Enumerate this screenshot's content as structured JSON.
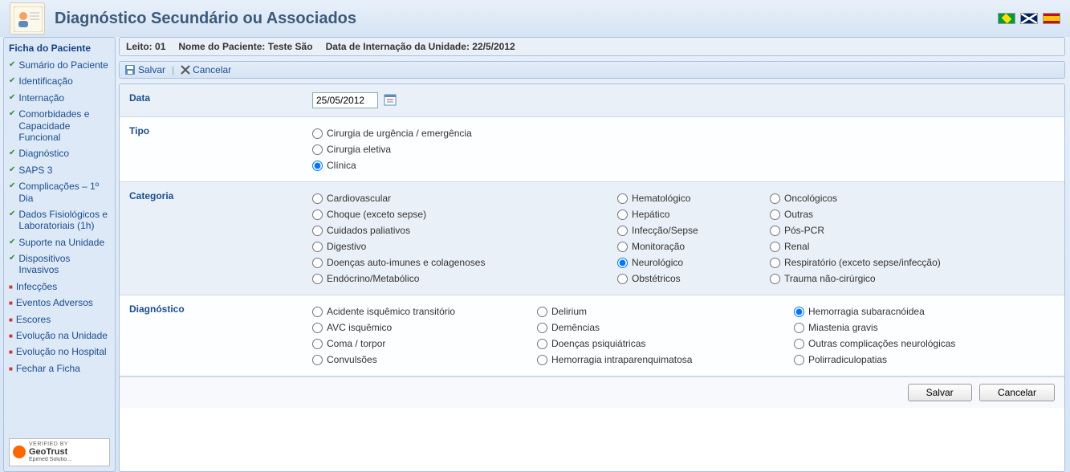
{
  "page_title": "Diagnóstico Secundário ou Associados",
  "sidebar": {
    "title": "Ficha do Paciente",
    "items": [
      {
        "label": "Sumário do Paciente",
        "type": "green"
      },
      {
        "label": "Identificação",
        "type": "green"
      },
      {
        "label": "Internação",
        "type": "green"
      },
      {
        "label": "Comorbidades e Capacidade Funcional",
        "type": "green"
      },
      {
        "label": "Diagnóstico",
        "type": "green"
      },
      {
        "label": "SAPS 3",
        "type": "green"
      },
      {
        "label": "Complicações – 1º Dia",
        "type": "green"
      },
      {
        "label": "Dados Fisiológicos e Laboratoriais (1h)",
        "type": "green"
      },
      {
        "label": "Suporte na Unidade",
        "type": "green"
      },
      {
        "label": "Dispositivos Invasivos",
        "type": "green"
      },
      {
        "label": "Infecções",
        "type": "red"
      },
      {
        "label": "Eventos Adversos",
        "type": "red"
      },
      {
        "label": "Escores",
        "type": "red"
      },
      {
        "label": "Evolução na Unidade",
        "type": "red"
      },
      {
        "label": "Evolução no Hospital",
        "type": "red"
      },
      {
        "label": "Fechar a Ficha",
        "type": "red"
      }
    ]
  },
  "geotrust": {
    "verified": "VERIFIED BY",
    "brand": "GeoTrust",
    "sub": "Epimed Solutio..."
  },
  "info_bar": {
    "leito_label": "Leito:",
    "leito_value": "01",
    "nome_label": "Nome do Paciente:",
    "nome_value": "Teste São",
    "data_label": "Data de Internação da Unidade:",
    "data_value": "22/5/2012"
  },
  "toolbar": {
    "salvar": "Salvar",
    "cancelar": "Cancelar"
  },
  "form": {
    "data_label": "Data",
    "data_value": "25/05/2012",
    "tipo_label": "Tipo",
    "tipo_options": [
      {
        "label": "Cirurgia de urgência / emergência",
        "checked": false
      },
      {
        "label": "Cirurgia eletiva",
        "checked": false
      },
      {
        "label": "Clínica",
        "checked": true
      }
    ],
    "categoria_label": "Categoria",
    "categoria_options": [
      {
        "label": "Cardiovascular",
        "checked": false
      },
      {
        "label": "Hematológico",
        "checked": false
      },
      {
        "label": "Oncológicos",
        "checked": false
      },
      {
        "label": "Choque (exceto sepse)",
        "checked": false
      },
      {
        "label": "Hepático",
        "checked": false
      },
      {
        "label": "Outras",
        "checked": false
      },
      {
        "label": "Cuidados paliativos",
        "checked": false
      },
      {
        "label": "Infecção/Sepse",
        "checked": false
      },
      {
        "label": "Pós-PCR",
        "checked": false
      },
      {
        "label": "Digestivo",
        "checked": false
      },
      {
        "label": "Monitoração",
        "checked": false
      },
      {
        "label": "Renal",
        "checked": false
      },
      {
        "label": "Doenças auto-imunes e colagenoses",
        "checked": false
      },
      {
        "label": "Neurológico",
        "checked": true
      },
      {
        "label": "Respiratório (exceto sepse/infecção)",
        "checked": false
      },
      {
        "label": "Endócrino/Metabólico",
        "checked": false
      },
      {
        "label": "Obstétricos",
        "checked": false
      },
      {
        "label": "Trauma não-cirúrgico",
        "checked": false
      }
    ],
    "diagnostico_label": "Diagnóstico",
    "diagnostico_options": [
      {
        "label": "Acidente isquêmico transitório",
        "checked": false
      },
      {
        "label": "Delirium",
        "checked": false
      },
      {
        "label": "Hemorragia subaracnóidea",
        "checked": true
      },
      {
        "label": "AVC isquêmico",
        "checked": false
      },
      {
        "label": "Demências",
        "checked": false
      },
      {
        "label": "Miastenia gravis",
        "checked": false
      },
      {
        "label": "Coma / torpor",
        "checked": false
      },
      {
        "label": "Doenças psiquiátricas",
        "checked": false
      },
      {
        "label": "Outras complicações neurológicas",
        "checked": false
      },
      {
        "label": "Convulsões",
        "checked": false
      },
      {
        "label": "Hemorragia intraparenquimatosa",
        "checked": false
      },
      {
        "label": "Polirradiculopatias",
        "checked": false
      }
    ]
  },
  "footer": {
    "salvar": "Salvar",
    "cancelar": "Cancelar"
  }
}
